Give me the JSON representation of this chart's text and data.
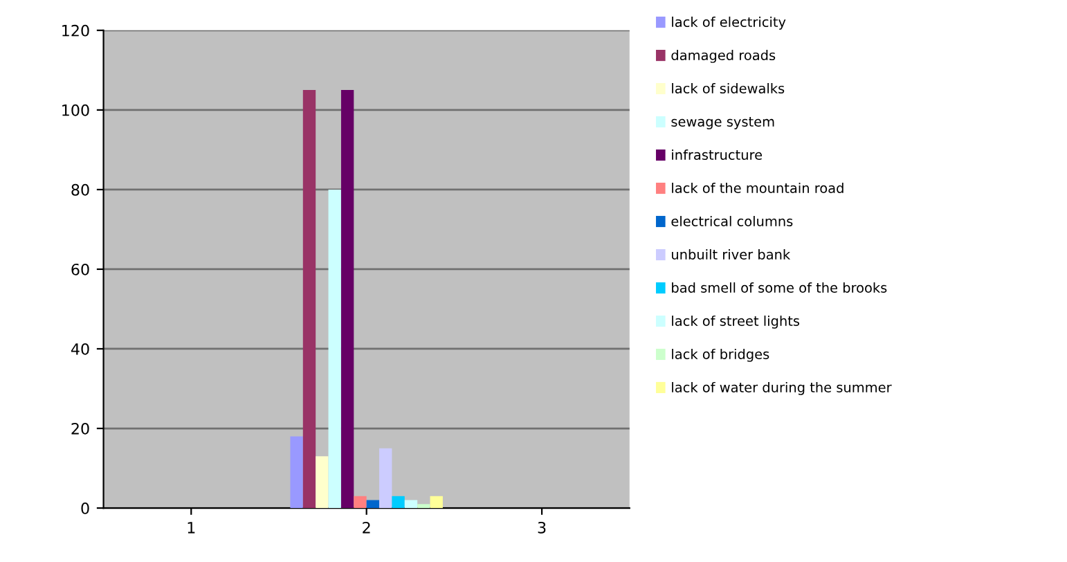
{
  "chart_data": {
    "type": "bar",
    "categories": [
      "1",
      "2",
      "3"
    ],
    "ylim": [
      0,
      120
    ],
    "yticks": [
      0,
      20,
      40,
      60,
      80,
      100,
      120
    ],
    "grid": "y",
    "legend": "right",
    "series": [
      {
        "name": "lack of electricity",
        "color": "#9999ff",
        "values": [
          null,
          18,
          null
        ]
      },
      {
        "name": "damaged roads",
        "color": "#993366",
        "values": [
          null,
          105,
          null
        ]
      },
      {
        "name": "lack of sidewalks",
        "color": "#ffffcc",
        "values": [
          null,
          13,
          null
        ]
      },
      {
        "name": "sewage system",
        "color": "#ccffff",
        "values": [
          null,
          80,
          null
        ]
      },
      {
        "name": "infrastructure",
        "color": "#660066",
        "values": [
          null,
          105,
          null
        ]
      },
      {
        "name": "lack of the mountain road",
        "color": "#ff8080",
        "values": [
          null,
          3,
          null
        ]
      },
      {
        "name": "electrical columns",
        "color": "#0066cc",
        "values": [
          null,
          2,
          null
        ]
      },
      {
        "name": "unbuilt river bank",
        "color": "#ccccff",
        "values": [
          null,
          15,
          null
        ]
      },
      {
        "name": "bad smell of some of the brooks",
        "color": "#00ccff",
        "values": [
          null,
          3,
          null
        ]
      },
      {
        "name": "lack of street lights",
        "color": "#ccffff",
        "values": [
          null,
          2,
          null
        ]
      },
      {
        "name": "lack of bridges",
        "color": "#ccffcc",
        "values": [
          null,
          1,
          null
        ]
      },
      {
        "name": "lack of water during the summer",
        "color": "#ffff99",
        "values": [
          null,
          3,
          null
        ]
      }
    ]
  }
}
